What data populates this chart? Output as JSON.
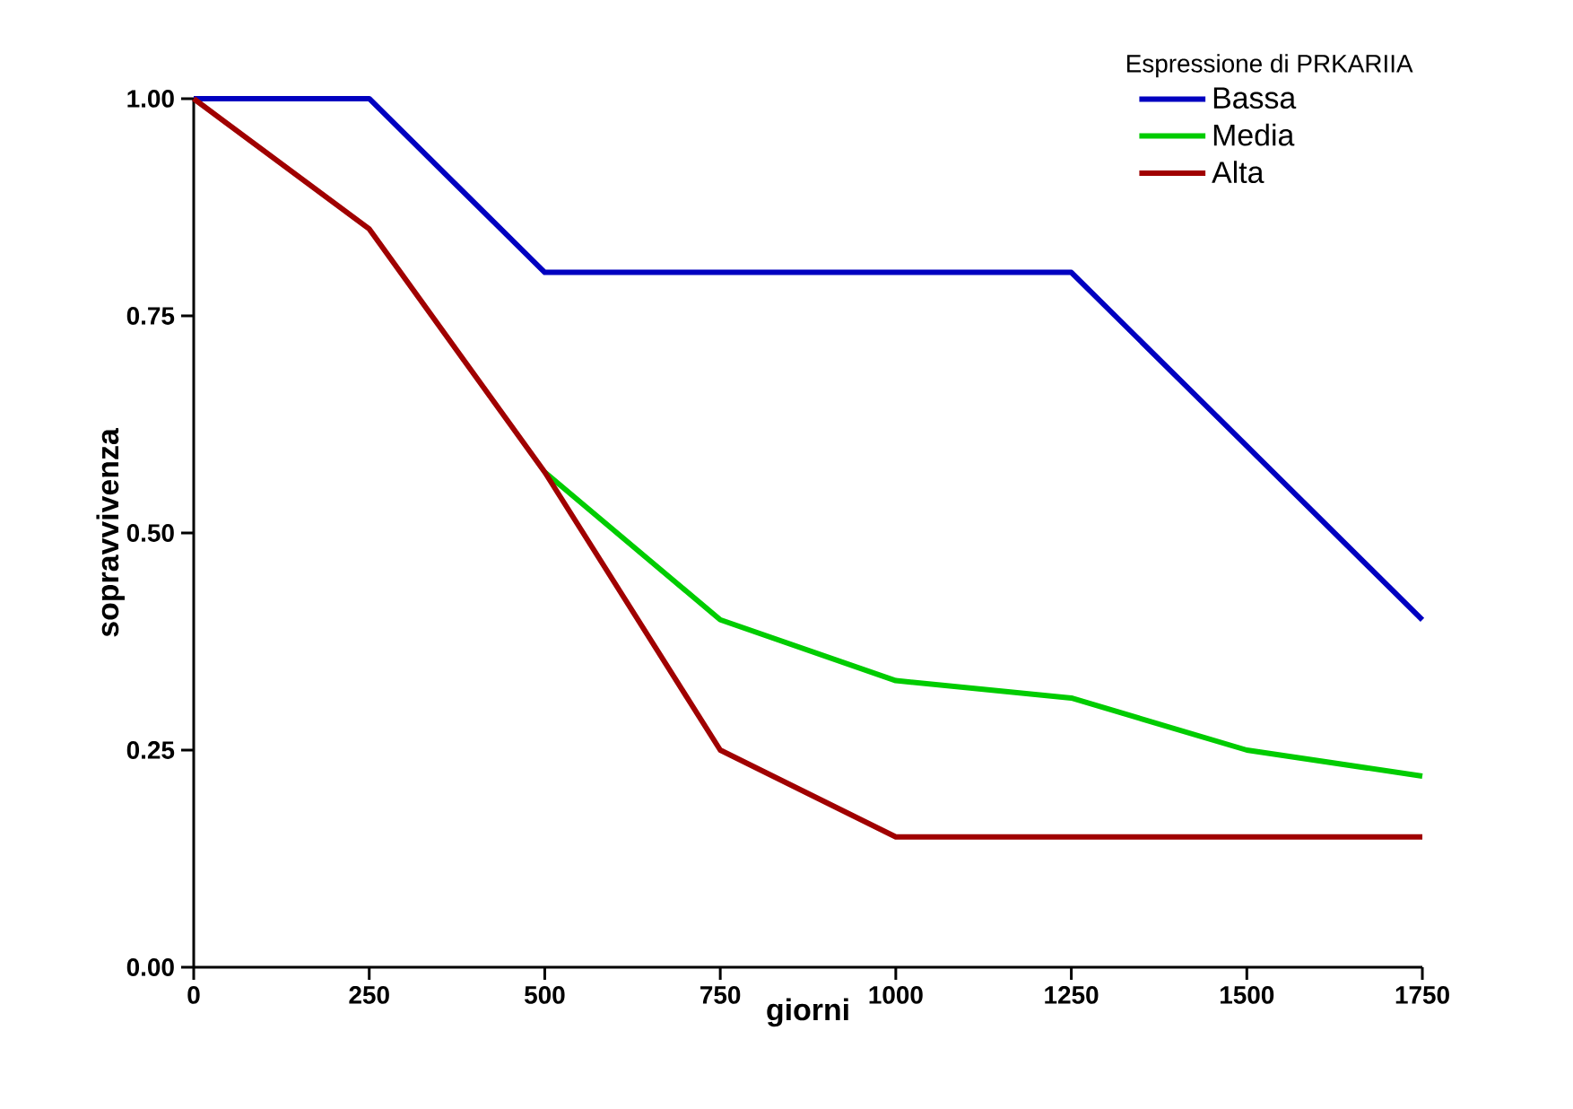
{
  "chart_data": {
    "type": "line",
    "xlabel": "giorni",
    "ylabel": "sopravvivenza",
    "legend_title": "Espressione di PRKARIIA",
    "x": [
      0,
      250,
      500,
      750,
      1000,
      1250,
      1500,
      1750
    ],
    "series": [
      {
        "name": "Bassa",
        "color": "#0000c0",
        "values": [
          1.0,
          1.0,
          0.8,
          0.8,
          0.8,
          0.8,
          0.6,
          0.4
        ]
      },
      {
        "name": "Media",
        "color": "#00cc00",
        "values": [
          null,
          null,
          0.57,
          0.4,
          0.33,
          0.31,
          0.25,
          0.22
        ]
      },
      {
        "name": "Alta",
        "color": "#a00000",
        "values": [
          1.0,
          0.85,
          0.57,
          0.25,
          0.15,
          0.15,
          0.15,
          0.15
        ]
      }
    ],
    "xlim": [
      0,
      1750
    ],
    "ylim": [
      0,
      1
    ],
    "xticks": [
      0,
      250,
      500,
      750,
      1000,
      1250,
      1500,
      1750
    ],
    "yticks": [
      {
        "value": 0,
        "label": "0.00"
      },
      {
        "value": 0.25,
        "label": "0.25"
      },
      {
        "value": 0.5,
        "label": "0.50"
      },
      {
        "value": 0.75,
        "label": "0.75"
      },
      {
        "value": 1,
        "label": "1.00"
      }
    ],
    "legend": "top right",
    "grid": false,
    "marker": "none",
    "line_style": "solid"
  }
}
